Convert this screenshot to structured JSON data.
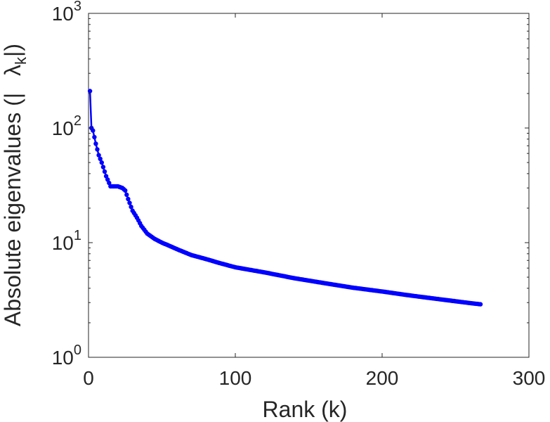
{
  "chart_data": {
    "type": "line",
    "title": "",
    "xlabel": "Rank (k)",
    "ylabel": {
      "main": "Absolute eigenvalues (|",
      "symbol": "λ",
      "subscript": "k",
      "close": "|)"
    },
    "xlim": [
      0,
      300
    ],
    "ylim": [
      1,
      1000
    ],
    "yscale": "log",
    "grid": false,
    "legend": "none",
    "xticks": [
      0,
      100,
      200,
      300
    ],
    "xtick_labels": [
      "0",
      "100",
      "200",
      "300"
    ],
    "yticks": [
      1,
      10,
      100,
      1000
    ],
    "ytick_labels": [
      {
        "base": "10",
        "exp": "0"
      },
      {
        "base": "10",
        "exp": "1"
      },
      {
        "base": "10",
        "exp": "2"
      },
      {
        "base": "10",
        "exp": "3"
      }
    ],
    "series": [
      {
        "color": "#0000ff",
        "marker": "circle",
        "x": [
          1,
          2,
          3,
          5,
          7,
          9,
          12,
          15,
          18,
          20,
          23,
          25,
          27,
          30,
          33,
          36,
          40,
          45,
          50,
          55,
          60,
          70,
          80,
          90,
          100,
          120,
          140,
          160,
          180,
          200,
          220,
          240,
          260,
          267
        ],
        "y": [
          210,
          100,
          95,
          73,
          58,
          50,
          38,
          31,
          31,
          31,
          30,
          28.5,
          24,
          19,
          16.5,
          14,
          12,
          10.8,
          10,
          9.4,
          8.8,
          7.8,
          7.2,
          6.6,
          6.1,
          5.5,
          4.9,
          4.45,
          4.05,
          3.75,
          3.45,
          3.2,
          2.97,
          2.9
        ]
      }
    ]
  }
}
